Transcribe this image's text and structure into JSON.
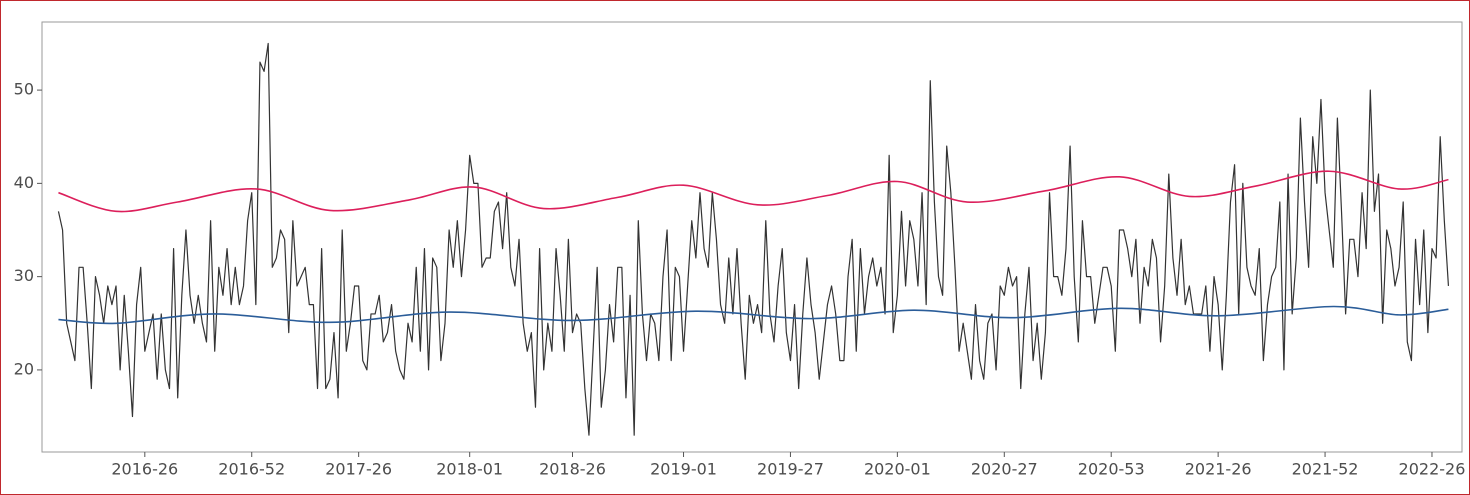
{
  "chart_data": {
    "type": "line",
    "x": [
      "2016-05",
      "2016-06",
      "2016-07",
      "2016-08",
      "2016-09",
      "2016-10",
      "2016-11",
      "2016-12",
      "2016-13",
      "2016-14",
      "2016-15",
      "2016-16",
      "2016-17",
      "2016-18",
      "2016-19",
      "2016-20",
      "2016-21",
      "2016-22",
      "2016-23",
      "2016-24",
      "2016-25",
      "2016-26",
      "2016-27",
      "2016-28",
      "2016-29",
      "2016-30",
      "2016-31",
      "2016-32",
      "2016-33",
      "2016-34",
      "2016-35",
      "2016-36",
      "2016-37",
      "2016-38",
      "2016-39",
      "2016-40",
      "2016-41",
      "2016-42",
      "2016-43",
      "2016-44",
      "2016-45",
      "2016-46",
      "2016-47",
      "2016-48",
      "2016-49",
      "2016-50",
      "2016-51",
      "2016-52",
      "2017-01",
      "2017-02",
      "2017-03",
      "2017-04",
      "2017-05",
      "2017-06",
      "2017-07",
      "2017-08",
      "2017-09",
      "2017-10",
      "2017-11",
      "2017-12",
      "2017-13",
      "2017-14",
      "2017-15",
      "2017-16",
      "2017-17",
      "2017-18",
      "2017-19",
      "2017-20",
      "2017-21",
      "2017-22",
      "2017-23",
      "2017-24",
      "2017-25",
      "2017-26",
      "2017-27",
      "2017-28",
      "2017-29",
      "2017-30",
      "2017-31",
      "2017-32",
      "2017-33",
      "2017-34",
      "2017-35",
      "2017-36",
      "2017-37",
      "2017-38",
      "2017-39",
      "2017-40",
      "2017-41",
      "2017-42",
      "2017-43",
      "2017-44",
      "2017-45",
      "2017-46",
      "2017-47",
      "2017-48",
      "2017-49",
      "2017-50",
      "2017-51",
      "2017-52",
      "2018-01",
      "2018-02",
      "2018-03",
      "2018-04",
      "2018-05",
      "2018-06",
      "2018-07",
      "2018-08",
      "2018-09",
      "2018-10",
      "2018-11",
      "2018-12",
      "2018-13",
      "2018-14",
      "2018-15",
      "2018-16",
      "2018-17",
      "2018-18",
      "2018-19",
      "2018-20",
      "2018-21",
      "2018-22",
      "2018-23",
      "2018-24",
      "2018-25",
      "2018-26",
      "2018-27",
      "2018-28",
      "2018-29",
      "2018-30",
      "2018-31",
      "2018-32",
      "2018-33",
      "2018-34",
      "2018-35",
      "2018-36",
      "2018-37",
      "2018-38",
      "2018-39",
      "2018-40",
      "2018-41",
      "2018-42",
      "2018-43",
      "2018-44",
      "2018-45",
      "2018-46",
      "2018-47",
      "2018-48",
      "2018-49",
      "2018-50",
      "2018-51",
      "2018-52",
      "2019-01",
      "2019-02",
      "2019-03",
      "2019-04",
      "2019-05",
      "2019-06",
      "2019-07",
      "2019-08",
      "2019-09",
      "2019-10",
      "2019-11",
      "2019-12",
      "2019-13",
      "2019-14",
      "2019-15",
      "2019-16",
      "2019-17",
      "2019-18",
      "2019-19",
      "2019-20",
      "2019-21",
      "2019-22",
      "2019-23",
      "2019-24",
      "2019-25",
      "2019-26",
      "2019-27",
      "2019-28",
      "2019-29",
      "2019-30",
      "2019-31",
      "2019-32",
      "2019-33",
      "2019-34",
      "2019-35",
      "2019-36",
      "2019-37",
      "2019-38",
      "2019-39",
      "2019-40",
      "2019-41",
      "2019-42",
      "2019-43",
      "2019-44",
      "2019-45",
      "2019-46",
      "2019-47",
      "2019-48",
      "2019-49",
      "2019-50",
      "2019-51",
      "2019-52",
      "2020-01",
      "2020-02",
      "2020-03",
      "2020-04",
      "2020-05",
      "2020-06",
      "2020-07",
      "2020-08",
      "2020-09",
      "2020-10",
      "2020-11",
      "2020-12",
      "2020-13",
      "2020-14",
      "2020-15",
      "2020-16",
      "2020-17",
      "2020-18",
      "2020-19",
      "2020-20",
      "2020-21",
      "2020-22",
      "2020-23",
      "2020-24",
      "2020-25",
      "2020-26",
      "2020-27",
      "2020-28",
      "2020-29",
      "2020-30",
      "2020-31",
      "2020-32",
      "2020-33",
      "2020-34",
      "2020-35",
      "2020-36",
      "2020-37",
      "2020-38",
      "2020-39",
      "2020-40",
      "2020-41",
      "2020-42",
      "2020-43",
      "2020-44",
      "2020-45",
      "2020-46",
      "2020-47",
      "2020-48",
      "2020-49",
      "2020-50",
      "2020-51",
      "2020-52",
      "2020-53",
      "2021-01",
      "2021-02",
      "2021-03",
      "2021-04",
      "2021-05",
      "2021-06",
      "2021-07",
      "2021-08",
      "2021-09",
      "2021-10",
      "2021-11",
      "2021-12",
      "2021-13",
      "2021-14",
      "2021-15",
      "2021-16",
      "2021-17",
      "2021-18",
      "2021-19",
      "2021-20",
      "2021-21",
      "2021-22",
      "2021-23",
      "2021-24",
      "2021-25",
      "2021-26",
      "2021-27",
      "2021-28",
      "2021-29",
      "2021-30",
      "2021-31",
      "2021-32",
      "2021-33",
      "2021-34",
      "2021-35",
      "2021-36",
      "2021-37",
      "2021-38",
      "2021-39",
      "2021-40",
      "2021-41",
      "2021-42",
      "2021-43",
      "2021-44",
      "2021-45",
      "2021-46",
      "2021-47",
      "2021-48",
      "2021-49",
      "2021-50",
      "2021-51",
      "2021-52",
      "2022-01",
      "2022-02",
      "2022-03",
      "2022-04",
      "2022-05",
      "2022-06",
      "2022-07",
      "2022-08",
      "2022-09",
      "2022-10",
      "2022-11",
      "2022-12",
      "2022-13",
      "2022-14",
      "2022-15",
      "2022-16",
      "2022-17",
      "2022-18",
      "2022-19",
      "2022-20",
      "2022-21",
      "2022-22",
      "2022-23",
      "2022-24",
      "2022-25",
      "2022-26",
      "2022-27",
      "2022-28",
      "2022-29",
      "2022-30"
    ],
    "series": [
      {
        "color": "#333333",
        "values": [
          37,
          35,
          25,
          23,
          21,
          31,
          31,
          25,
          18,
          30,
          28,
          25,
          29,
          27,
          29,
          20,
          28,
          22,
          15,
          27,
          31,
          22,
          24,
          26,
          19,
          26,
          20,
          18,
          33,
          17,
          28,
          35,
          28,
          25,
          28,
          25,
          23,
          36,
          22,
          31,
          28,
          33,
          27,
          31,
          27,
          29,
          36,
          39,
          27,
          53,
          52,
          55,
          31,
          32,
          35,
          34,
          24,
          36,
          29,
          30,
          31,
          27,
          27,
          18,
          33,
          18,
          19,
          24,
          17,
          35,
          22,
          25,
          29,
          29,
          21,
          20,
          26,
          26,
          28,
          23,
          24,
          27,
          22,
          20,
          19,
          25,
          23,
          31,
          22,
          33,
          20,
          32,
          31,
          21,
          25,
          35,
          31,
          36,
          30,
          35,
          43,
          40,
          40,
          31,
          32,
          32,
          37,
          38,
          33,
          39,
          31,
          29,
          34,
          25,
          22,
          24,
          16,
          33,
          20,
          25,
          22,
          33,
          28,
          22,
          34,
          24,
          26,
          25,
          18,
          13,
          22,
          31,
          16,
          20,
          27,
          23,
          31,
          31,
          17,
          28,
          13,
          36,
          26,
          21,
          26,
          25,
          21,
          30,
          35,
          21,
          31,
          30,
          22,
          29,
          36,
          32,
          39,
          33,
          31,
          39,
          34,
          27,
          25,
          32,
          26,
          33,
          25,
          19,
          28,
          25,
          27,
          24,
          36,
          26,
          23,
          29,
          33,
          24,
          21,
          27,
          18,
          26,
          32,
          27,
          24,
          19,
          23,
          27,
          29,
          26,
          21,
          21,
          30,
          34,
          22,
          33,
          26,
          30,
          32,
          29,
          31,
          26,
          43,
          24,
          28,
          37,
          29,
          36,
          34,
          29,
          39,
          27,
          51,
          38,
          30,
          28,
          44,
          39,
          31,
          22,
          25,
          22,
          19,
          27,
          21,
          19,
          25,
          26,
          20,
          29,
          28,
          31,
          29,
          30,
          18,
          26,
          31,
          21,
          25,
          19,
          24,
          39,
          30,
          30,
          28,
          33,
          44,
          30,
          23,
          36,
          30,
          30,
          25,
          28,
          31,
          31,
          29,
          22,
          35,
          35,
          33,
          30,
          34,
          25,
          31,
          29,
          34,
          32,
          23,
          29,
          41,
          32,
          28,
          34,
          27,
          29,
          26,
          26,
          26,
          29,
          22,
          30,
          27,
          20,
          28,
          38,
          42,
          26,
          40,
          31,
          29,
          28,
          33,
          21,
          27,
          30,
          31,
          38,
          20,
          41,
          26,
          32,
          47,
          38,
          31,
          45,
          40,
          49,
          39,
          35,
          31,
          47,
          37,
          26,
          34,
          34,
          30,
          39,
          33,
          50,
          37,
          41,
          25,
          35,
          33,
          29,
          31,
          38,
          23,
          21,
          34,
          27,
          35,
          24,
          33,
          32,
          45,
          36,
          29
        ]
      },
      {
        "color": "#dc1f5b",
        "smooth": true,
        "x": [
          "2016-05",
          "2016-19",
          "2016-34",
          "2017-01",
          "2017-19",
          "2017-38",
          "2018-02",
          "2018-19",
          "2018-37",
          "2019-01",
          "2019-19",
          "2019-36",
          "2020-01",
          "2020-18",
          "2020-37",
          "2021-02",
          "2021-19",
          "2021-35",
          "2022-01",
          "2022-18",
          "2022-30"
        ],
        "values": [
          39.0,
          37.0,
          38.0,
          39.4,
          37.1,
          38.2,
          39.6,
          37.3,
          38.5,
          39.8,
          37.7,
          38.7,
          40.2,
          38.0,
          39.2,
          40.7,
          38.6,
          39.7,
          41.3,
          39.4,
          40.4
        ]
      },
      {
        "color": "#2b5d99",
        "smooth": true,
        "x": [
          "2016-05",
          "2016-19",
          "2016-43",
          "2017-19",
          "2017-48",
          "2018-26",
          "2019-04",
          "2019-32",
          "2020-05",
          "2020-29",
          "2021-02",
          "2021-26",
          "2022-02",
          "2022-18",
          "2022-30"
        ],
        "values": [
          25.4,
          25.0,
          26.0,
          25.1,
          26.2,
          25.3,
          26.3,
          25.5,
          26.4,
          25.6,
          26.6,
          25.8,
          26.8,
          25.9,
          26.5
        ]
      }
    ],
    "ylim": [
      11.2,
      57.3
    ],
    "yticks": [
      20,
      30,
      40,
      50
    ],
    "xticks": [
      "2016-26",
      "2016-52",
      "2017-26",
      "2018-01",
      "2018-26",
      "2019-01",
      "2019-27",
      "2020-01",
      "2020-27",
      "2020-53",
      "2021-26",
      "2021-52",
      "2022-26"
    ]
  }
}
